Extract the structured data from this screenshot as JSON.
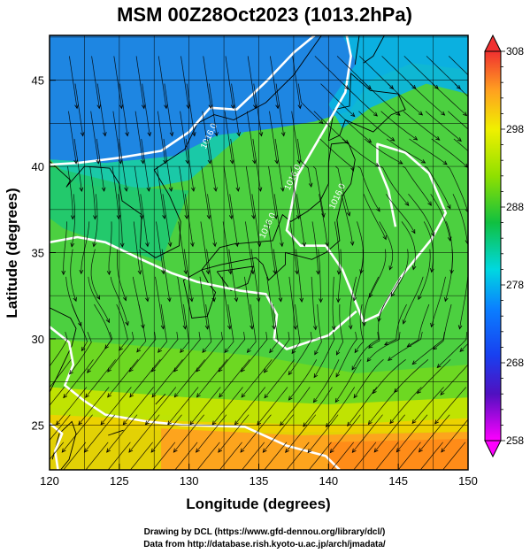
{
  "chart_data": {
    "type": "heatmap",
    "title": "MSM 00Z28Oct2023 (1013.2hPa)",
    "xlabel": "Longitude (degrees)",
    "ylabel": "Latitude  (degrees)",
    "xlim": [
      120,
      150
    ],
    "ylim": [
      22.4,
      47.6
    ],
    "x_ticks": [
      120,
      125,
      130,
      135,
      140,
      145,
      150
    ],
    "y_ticks": [
      25,
      30,
      35,
      40,
      45
    ],
    "grid": true,
    "colorbar": {
      "range": [
        258,
        308
      ],
      "ticks": [
        258,
        268,
        278,
        288,
        298,
        308
      ],
      "colors": [
        "#ff00ff",
        "#3a1fd0",
        "#1060ff",
        "#00d8e0",
        "#10c030",
        "#90e000",
        "#f0f000",
        "#ffa020",
        "#f04030"
      ]
    },
    "contours": [
      {
        "label": "1016.0"
      },
      {
        "label": "1016.0"
      },
      {
        "label": "1016.0"
      },
      {
        "label": "1016.0"
      }
    ],
    "overlay": "wind streamlines"
  },
  "credits": {
    "line1": "Drawing by DCL (https://www.gfd-dennou.org/library/dcl/)",
    "line2": "Data from http://database.rish.kyoto-u.ac.jp/arch/jmadata/"
  }
}
